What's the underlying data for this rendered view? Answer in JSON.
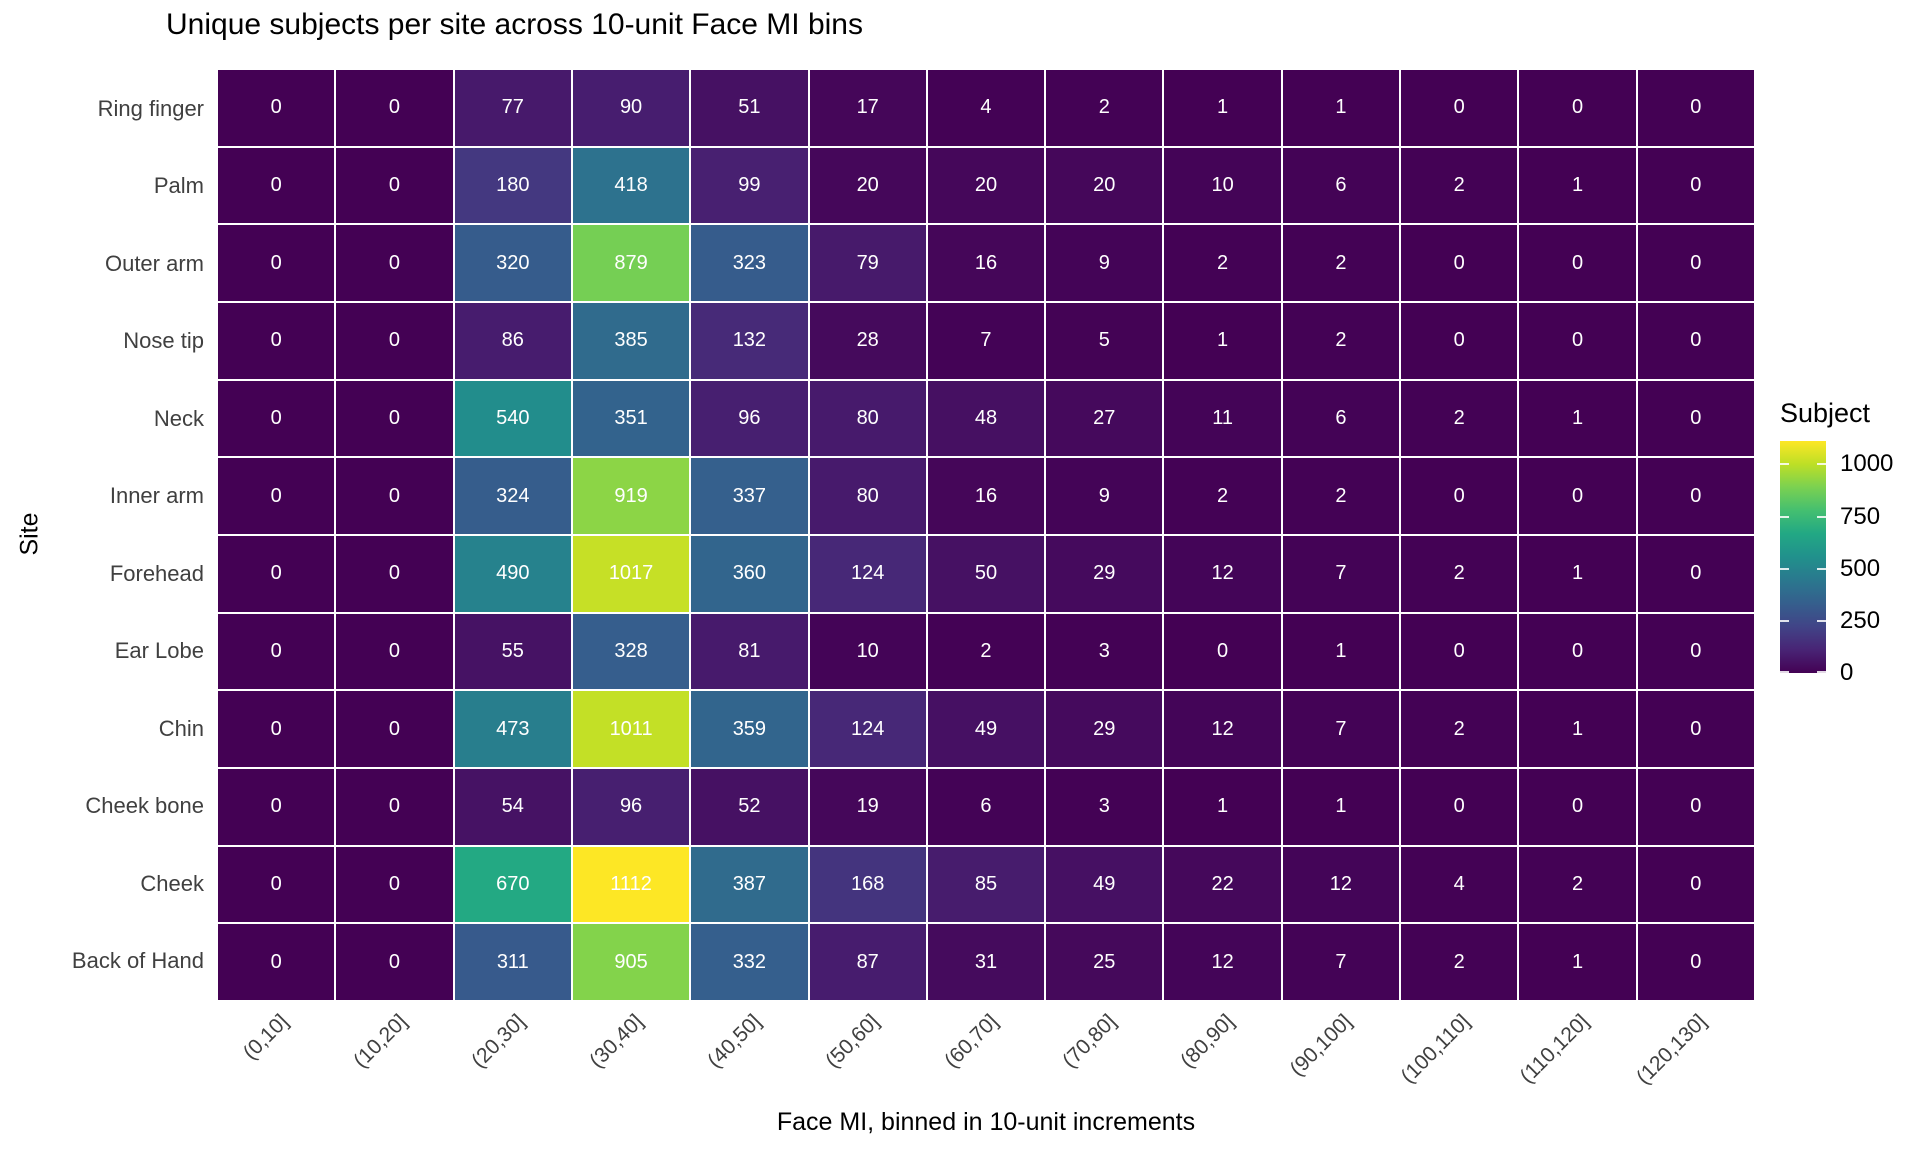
{
  "chart_data": {
    "type": "heatmap",
    "title": "Unique subjects per site across 10-unit Face MI bins",
    "xlabel": "Face MI, binned in 10-unit increments",
    "ylabel": "Site",
    "x_categories": [
      "(0,10]",
      "(10,20]",
      "(20,30]",
      "(30,40]",
      "(40,50]",
      "(50,60]",
      "(60,70]",
      "(70,80]",
      "(80,90]",
      "(90,100]",
      "(100,110]",
      "(110,120]",
      "(120,130]"
    ],
    "rows": [
      {
        "site": "Ring finger",
        "values": [
          0,
          0,
          77,
          90,
          51,
          17,
          4,
          2,
          1,
          1,
          0,
          0,
          0
        ]
      },
      {
        "site": "Palm",
        "values": [
          0,
          0,
          180,
          418,
          99,
          20,
          20,
          20,
          10,
          6,
          2,
          1,
          0
        ]
      },
      {
        "site": "Outer arm",
        "values": [
          0,
          0,
          320,
          879,
          323,
          79,
          16,
          9,
          2,
          2,
          0,
          0,
          0
        ]
      },
      {
        "site": "Nose tip",
        "values": [
          0,
          0,
          86,
          385,
          132,
          28,
          7,
          5,
          1,
          2,
          0,
          0,
          0
        ]
      },
      {
        "site": "Neck",
        "values": [
          0,
          0,
          540,
          351,
          96,
          80,
          48,
          27,
          11,
          6,
          2,
          1,
          0
        ]
      },
      {
        "site": "Inner arm",
        "values": [
          0,
          0,
          324,
          919,
          337,
          80,
          16,
          9,
          2,
          2,
          0,
          0,
          0
        ]
      },
      {
        "site": "Forehead",
        "values": [
          0,
          0,
          490,
          1017,
          360,
          124,
          50,
          29,
          12,
          7,
          2,
          1,
          0
        ]
      },
      {
        "site": "Ear Lobe",
        "values": [
          0,
          0,
          55,
          328,
          81,
          10,
          2,
          3,
          0,
          1,
          0,
          0,
          0
        ]
      },
      {
        "site": "Chin",
        "values": [
          0,
          0,
          473,
          1011,
          359,
          124,
          49,
          29,
          12,
          7,
          2,
          1,
          0
        ]
      },
      {
        "site": "Cheek bone",
        "values": [
          0,
          0,
          54,
          96,
          52,
          19,
          6,
          3,
          1,
          1,
          0,
          0,
          0
        ]
      },
      {
        "site": "Cheek",
        "values": [
          0,
          0,
          670,
          1112,
          387,
          168,
          85,
          49,
          22,
          12,
          4,
          2,
          0
        ]
      },
      {
        "site": "Back of Hand",
        "values": [
          0,
          0,
          311,
          905,
          332,
          87,
          31,
          25,
          12,
          7,
          2,
          1,
          0
        ]
      }
    ],
    "legend": {
      "title": "Subject",
      "ticks": [
        1000,
        750,
        500,
        250,
        0
      ],
      "domain": [
        0,
        1112
      ],
      "position": "right"
    },
    "colormap": {
      "name": "viridis",
      "stops": [
        [
          0.0,
          "#440154"
        ],
        [
          0.1,
          "#482475"
        ],
        [
          0.2,
          "#414487"
        ],
        [
          0.3,
          "#355f8d"
        ],
        [
          0.4,
          "#2a788e"
        ],
        [
          0.5,
          "#21918c"
        ],
        [
          0.6,
          "#22a884"
        ],
        [
          0.7,
          "#44bf70"
        ],
        [
          0.8,
          "#7ad151"
        ],
        [
          0.9,
          "#bddf26"
        ],
        [
          1.0,
          "#fde725"
        ]
      ]
    },
    "layout": {
      "grid_lines": "white",
      "x_tick_rotation_deg": 45,
      "cell_value_labels": true
    }
  },
  "colors": {
    "background": "#ffffff",
    "cell_text": "#ffffff",
    "axis_text": "#404040",
    "title_text": "#000000"
  }
}
